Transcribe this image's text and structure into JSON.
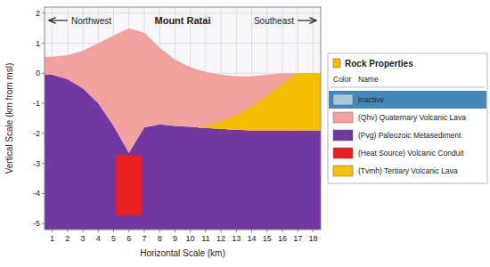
{
  "chart_data": {
    "type": "area",
    "title": "Mount Ratai",
    "annotations": [
      "Northwest",
      "Southeast"
    ],
    "x_label": "Horizontal Scale (km)",
    "y_label": "Vertical Scale (km from msl)",
    "xlim": [
      0.5,
      18.5
    ],
    "ylim": [
      -5.2,
      2.2
    ],
    "xticks": [
      1,
      2,
      3,
      4,
      5,
      6,
      7,
      8,
      9,
      10,
      11,
      12,
      13,
      14,
      15,
      16,
      17,
      18
    ],
    "yticks": [
      -5,
      -4,
      -3,
      -2,
      -1,
      0,
      1,
      2
    ],
    "grid": true,
    "legend": "right",
    "legend_title": "Rock Properties",
    "legend_columns": [
      "Color",
      "Name"
    ],
    "series": [
      {
        "name": "Inactive",
        "color": "#A8C8DC"
      },
      {
        "name": "(Qhv) Quaternary Volcanic Lava",
        "color": "#F2A0A0",
        "type": "area",
        "x": [
          0.5,
          1,
          2,
          3,
          4,
          5,
          6,
          7,
          8,
          9,
          10,
          11,
          12,
          13,
          14,
          15,
          16,
          17,
          18,
          18.5
        ],
        "values": [
          0.55,
          0.55,
          0.6,
          0.75,
          1.0,
          1.25,
          1.5,
          1.35,
          0.85,
          0.45,
          0.2,
          0.05,
          -0.05,
          -0.1,
          -0.1,
          -0.05,
          0.0,
          0.0,
          0.0,
          0.0
        ],
        "lower": [
          -0.05,
          -0.05,
          -0.2,
          -0.5,
          -1.0,
          -1.75,
          -2.65,
          -1.8,
          -1.7,
          -1.75,
          -1.78,
          -1.82,
          -1.85,
          -1.88,
          -1.9,
          -1.9,
          -1.9,
          -1.9,
          -1.9,
          -1.9
        ]
      },
      {
        "name": "(Pvg) Paleozoic Metasediment",
        "color": "#7038A0",
        "type": "area",
        "x": [
          0.5,
          1,
          2,
          3,
          4,
          5,
          6,
          7,
          8,
          9,
          10,
          11,
          12,
          13,
          14,
          15,
          16,
          17,
          18,
          18.5
        ],
        "values": [
          -0.05,
          -0.05,
          -0.2,
          -0.5,
          -1.0,
          -1.75,
          -2.65,
          -1.8,
          -1.7,
          -1.75,
          -1.78,
          -1.82,
          -1.85,
          -1.88,
          -1.9,
          -1.9,
          -1.9,
          -1.9,
          -1.9,
          -1.9
        ]
      },
      {
        "name": "(Heat Source) Volcanic Conduit",
        "color": "#E82020",
        "type": "rect",
        "x": [
          5.15,
          6.85
        ],
        "values": [
          -4.72,
          -2.72
        ]
      },
      {
        "name": "(Tvmh) Tertiary Volcanic Lava",
        "color": "#F5C000",
        "type": "area",
        "x": [
          10.5,
          11,
          12,
          13,
          14,
          15,
          16,
          17,
          18,
          18.5
        ],
        "values": [
          -1.78,
          -1.75,
          -1.6,
          -1.4,
          -1.1,
          -0.75,
          -0.35,
          0.0,
          0.0,
          0.0
        ],
        "lower": [
          -1.82,
          -1.82,
          -1.85,
          -1.88,
          -1.9,
          -1.9,
          -1.9,
          -1.9,
          -1.9,
          -1.9
        ]
      }
    ]
  }
}
